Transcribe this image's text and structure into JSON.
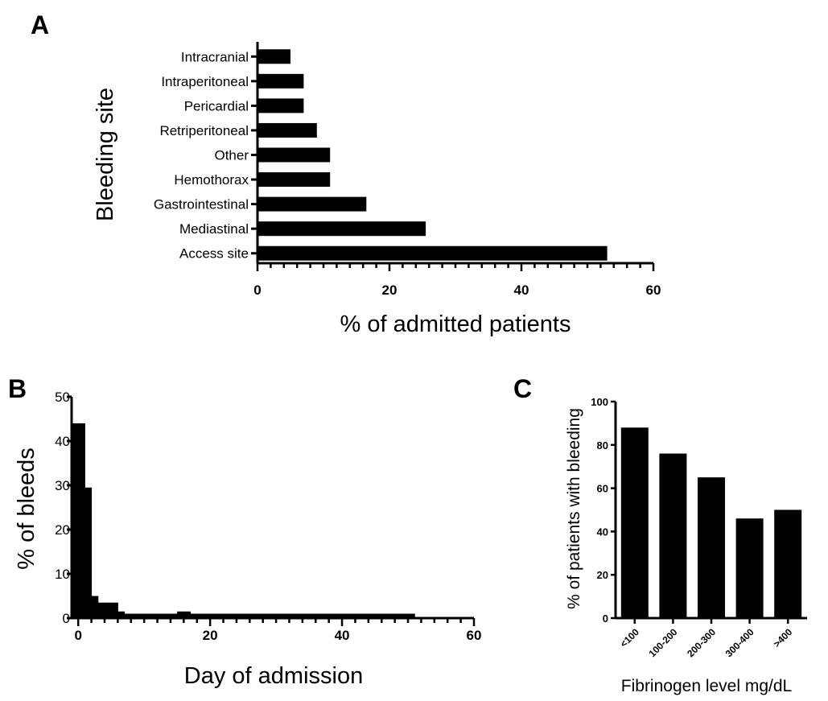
{
  "chart_data": [
    {
      "panel": "A",
      "type": "bar",
      "orientation": "horizontal",
      "categories": [
        "Intracranial",
        "Intraperitoneal",
        "Pericardial",
        "Retriperitoneal",
        "Other",
        "Hemothorax",
        "Gastrointestinal",
        "Mediastinal",
        "Access site"
      ],
      "values": [
        5,
        7,
        7,
        9,
        11,
        11,
        16.5,
        25.5,
        53
      ],
      "xlabel": "% of admitted patients",
      "ylabel": "Bleeding site",
      "xlim": [
        0,
        60
      ],
      "xticks": [
        "0",
        "20",
        "40",
        "60"
      ],
      "grid": false
    },
    {
      "panel": "B",
      "type": "bar",
      "subtype": "histogram",
      "x": [
        0,
        1,
        2,
        3,
        4,
        5,
        6,
        7,
        8,
        9,
        10,
        11,
        12,
        13,
        14,
        15,
        16,
        17,
        18,
        19,
        20,
        21,
        22,
        23,
        24,
        25,
        26,
        27,
        28,
        29,
        30,
        31,
        32,
        33,
        34,
        35,
        36,
        37,
        38,
        39,
        40,
        41,
        42,
        43,
        44,
        45,
        46,
        47,
        48,
        49,
        50
      ],
      "values": [
        44,
        29.5,
        5,
        3.5,
        1.5,
        3.5,
        1.5,
        1,
        1,
        1,
        1,
        1,
        1,
        1,
        1,
        1,
        1.5,
        1,
        1,
        1,
        1,
        1,
        1,
        1,
        1,
        1,
        1,
        1,
        1,
        1,
        1,
        1,
        1,
        1,
        1,
        1,
        1,
        1,
        1,
        1,
        1,
        1,
        1,
        1,
        1,
        1,
        1,
        1,
        1,
        1,
        1
      ],
      "xlabel": "Day of admission",
      "ylabel": "% of bleeds",
      "xlim": [
        -1,
        60
      ],
      "ylim": [
        0,
        50
      ],
      "xticks": [
        "0",
        "20",
        "40",
        "60"
      ],
      "yticks": [
        "0",
        "10",
        "20",
        "30",
        "40",
        "50"
      ],
      "grid": false
    },
    {
      "panel": "C",
      "type": "bar",
      "categories": [
        "<100",
        "100-200",
        "200-300",
        "300-400",
        ">400"
      ],
      "values": [
        88,
        76,
        65,
        46,
        50
      ],
      "xlabel": "Fibrinogen level mg/dL",
      "ylabel": "% of patients with bleeding",
      "ylim": [
        0,
        100
      ],
      "yticks": [
        "0",
        "20",
        "40",
        "60",
        "80",
        "100"
      ],
      "grid": false
    }
  ]
}
